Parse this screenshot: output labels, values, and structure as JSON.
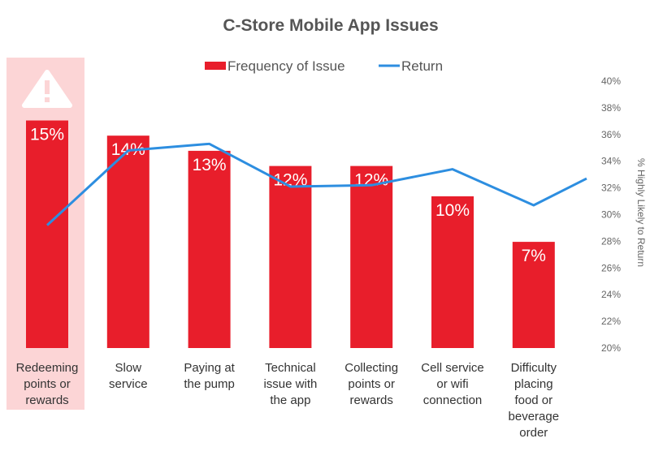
{
  "chart_data": {
    "type": "bar",
    "title": "C-Store Mobile App Issues",
    "categories": [
      [
        "Redeeming",
        "points or",
        "rewards"
      ],
      [
        "Slow",
        "service"
      ],
      [
        "Paying at",
        "the pump"
      ],
      [
        "Technical",
        "issue with",
        "the app"
      ],
      [
        "Collecting",
        "points or",
        "rewards"
      ],
      [
        "Cell service",
        "or wifi",
        "connection"
      ],
      [
        "Difficulty",
        "placing",
        "food or",
        "beverage",
        "order"
      ]
    ],
    "series": [
      {
        "name": "Frequency of Issue",
        "type": "bar",
        "color": "#e81e2b",
        "values": [
          15,
          14,
          13,
          12,
          12,
          10,
          7
        ],
        "labels": [
          "15%",
          "14%",
          "13%",
          "12%",
          "12%",
          "10%",
          "7%"
        ]
      },
      {
        "name": "Return",
        "type": "line",
        "axis": "right",
        "color": "#2d8ee0",
        "values": [
          29.2,
          34.8,
          35.3,
          32.1,
          32.2,
          33.4,
          30.7
        ],
        "end_value": 32.7
      }
    ],
    "y2label": "% Highly Likely to Return",
    "y2lim": [
      20,
      40
    ],
    "y2ticks": [
      "20%",
      "22%",
      "24%",
      "26%",
      "28%",
      "30%",
      "32%",
      "34%",
      "36%",
      "38%",
      "40%"
    ],
    "highlight": {
      "category_index": 0,
      "color": "#fcd5d6",
      "icon": "warning-triangle-icon"
    },
    "legend_position": "top"
  }
}
